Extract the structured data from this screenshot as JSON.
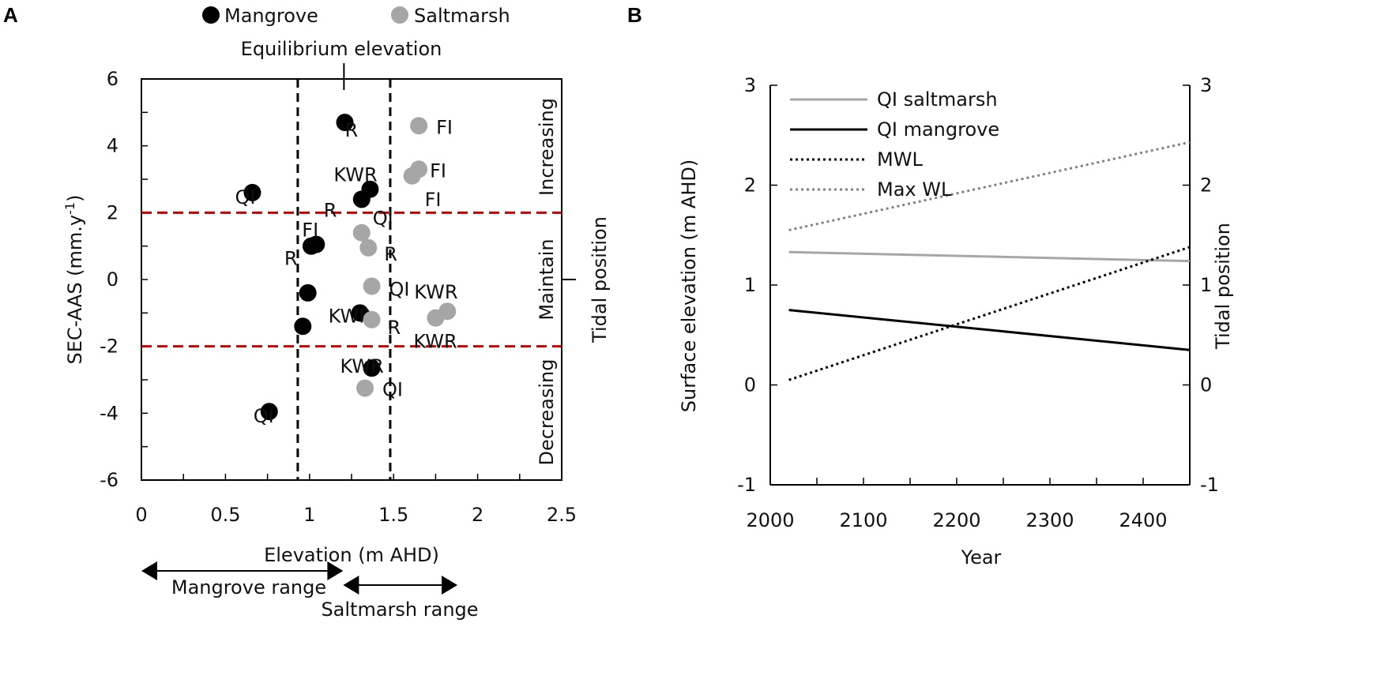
{
  "chart_data": [
    {
      "id": "A",
      "type": "scatter",
      "panel_label": "A",
      "xlabel": "Elevation (m AHD)",
      "ylabel_main": "SEC-AAS (mm.y",
      "ylabel_sup": "-1",
      "ylabel_end": ")",
      "right_label": "Tidal position",
      "xlim": [
        0,
        2.5
      ],
      "ylim": [
        -6,
        6
      ],
      "xticks": [
        0,
        0.5,
        1,
        1.5,
        2,
        2.5
      ],
      "xtick_labels": [
        "0",
        "0.5",
        "1",
        "1.5",
        "2",
        "2.5"
      ],
      "yticks": [
        -6,
        -4,
        -2,
        0,
        2,
        4,
        6
      ],
      "ytick_labels": [
        "-6",
        "-4",
        "-2",
        "0",
        "2",
        "4",
        "6"
      ],
      "legend": [
        {
          "name": "Mangrove",
          "color": "#000000"
        },
        {
          "name": "Saltmarsh",
          "color": "#a6a6a6"
        }
      ],
      "thresholds": [
        2,
        -2
      ],
      "threshold_color": "#c00000",
      "range_bounds_x": [
        0.93,
        1.48
      ],
      "equilibrium": {
        "label": "Equilibrium elevation",
        "x": 1.2
      },
      "zones": [
        {
          "label": "Increasing",
          "y_center": 4
        },
        {
          "label": "Maintain",
          "y_center": 0
        },
        {
          "label": "Decreasing",
          "y_center": -4
        }
      ],
      "series": [
        {
          "name": "Mangrove",
          "color": "#000000",
          "points": [
            {
              "x": 1.21,
              "y": 4.7,
              "label": "R"
            },
            {
              "x": 1.36,
              "y": 2.7,
              "label": "KWR"
            },
            {
              "x": 1.31,
              "y": 2.4,
              "label": "R"
            },
            {
              "x": 0.66,
              "y": 2.6,
              "label": "QI"
            },
            {
              "x": 1.04,
              "y": 1.05,
              "label": "FI"
            },
            {
              "x": 1.01,
              "y": 1.0,
              "label": "R"
            },
            {
              "x": 0.99,
              "y": -0.4,
              "label": ""
            },
            {
              "x": 0.96,
              "y": -1.4,
              "label": ""
            },
            {
              "x": 1.3,
              "y": -1.0,
              "label": "KWR"
            },
            {
              "x": 1.37,
              "y": -2.65,
              "label": "KWR"
            },
            {
              "x": 0.76,
              "y": -3.95,
              "label": "QI"
            }
          ]
        },
        {
          "name": "Saltmarsh",
          "color": "#a6a6a6",
          "points": [
            {
              "x": 1.65,
              "y": 4.6,
              "label": "FI"
            },
            {
              "x": 1.65,
              "y": 3.3,
              "label": "FI"
            },
            {
              "x": 1.61,
              "y": 3.1,
              "label": "FI"
            },
            {
              "x": 1.31,
              "y": 1.4,
              "label": "QI"
            },
            {
              "x": 1.35,
              "y": 0.95,
              "label": "R"
            },
            {
              "x": 1.37,
              "y": -0.2,
              "label": "QI"
            },
            {
              "x": 1.82,
              "y": -0.95,
              "label": "KWR"
            },
            {
              "x": 1.75,
              "y": -1.15,
              "label": "KWR"
            },
            {
              "x": 1.37,
              "y": -1.2,
              "label": "R"
            },
            {
              "x": 1.33,
              "y": -3.25,
              "label": "QI"
            }
          ]
        }
      ],
      "ranges": [
        {
          "label": "Mangrove range",
          "from": 0,
          "to": 1.2
        },
        {
          "label": "Saltmarsh range",
          "from": 1.2,
          "to": 1.88
        }
      ]
    },
    {
      "id": "B",
      "type": "line",
      "panel_label": "B",
      "xlabel": "Year",
      "ylabel": "Surface elevation (m AHD)",
      "right_label": "Tidal position",
      "xlim": [
        2000,
        2450
      ],
      "ylim": [
        -1,
        3
      ],
      "xticks": [
        2000,
        2100,
        2200,
        2300,
        2400
      ],
      "xtick_labels": [
        "2000",
        "2100",
        "2200",
        "2300",
        "2400"
      ],
      "yticks": [
        -1,
        0,
        1,
        2,
        3
      ],
      "ytick_labels": [
        "-1",
        "0",
        "1",
        "2",
        "3"
      ],
      "right_ytick_labels": [
        "-1",
        "0",
        "1",
        "2",
        "3"
      ],
      "series": [
        {
          "name": "QI saltmarsh",
          "color": "#a6a6a6",
          "style": "solid",
          "x": [
            2020,
            2450
          ],
          "y": [
            1.33,
            1.24
          ]
        },
        {
          "name": "QI mangrove",
          "color": "#000000",
          "style": "solid",
          "x": [
            2020,
            2450
          ],
          "y": [
            0.75,
            0.35
          ]
        },
        {
          "name": "MWL",
          "color": "#000000",
          "style": "dotted",
          "x": [
            2020,
            2450
          ],
          "y": [
            0.05,
            1.38
          ]
        },
        {
          "name": "Max WL",
          "color": "#808080",
          "style": "dotted",
          "x": [
            2020,
            2450
          ],
          "y": [
            1.55,
            2.43
          ]
        }
      ]
    }
  ]
}
